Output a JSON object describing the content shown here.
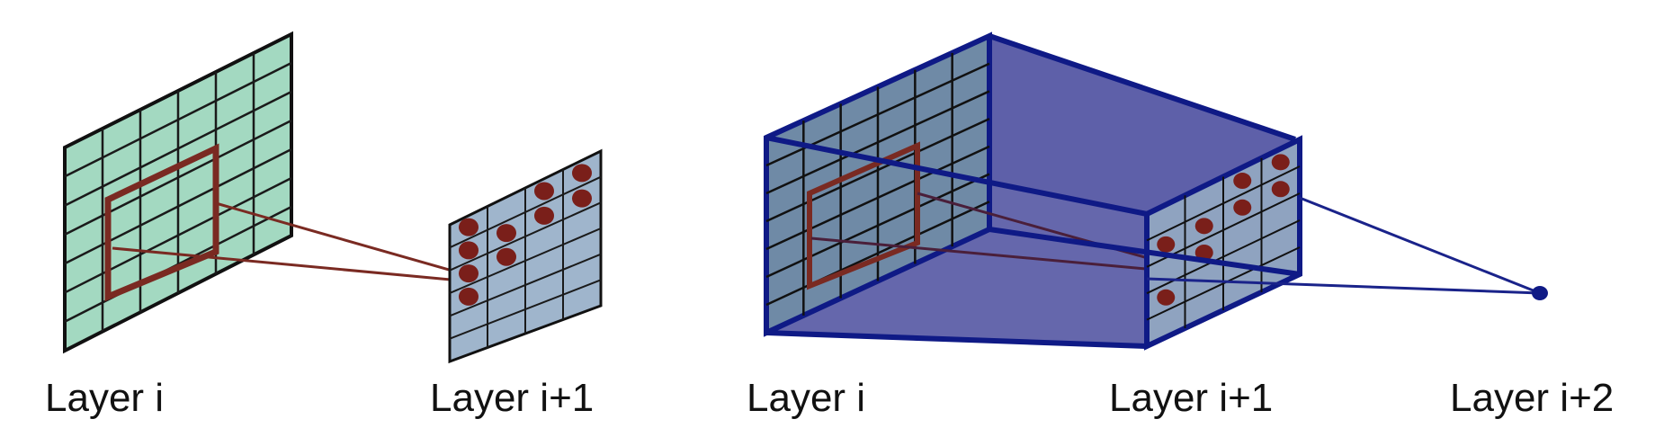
{
  "left_panel": {
    "labels": [
      "Layer i",
      "Layer i+1"
    ],
    "source_grid": {
      "rows": 7,
      "cols": 6
    },
    "target_grid": {
      "rows": 6,
      "cols": 4,
      "dots": [
        [
          0,
          0
        ],
        [
          0,
          2
        ],
        [
          0,
          3
        ],
        [
          1,
          0
        ],
        [
          1,
          1
        ],
        [
          1,
          2
        ],
        [
          1,
          3
        ],
        [
          2,
          0
        ],
        [
          2,
          1
        ],
        [
          3,
          0
        ]
      ]
    }
  },
  "right_panel": {
    "labels": [
      "Layer i",
      "Layer i+1",
      "Layer i+2"
    ],
    "source_grid": {
      "rows": 7,
      "cols": 6
    },
    "target_grid": {
      "rows": 5,
      "cols": 4,
      "dots": [
        [
          0,
          2
        ],
        [
          0,
          3
        ],
        [
          1,
          0
        ],
        [
          1,
          1
        ],
        [
          1,
          2
        ],
        [
          1,
          3
        ],
        [
          2,
          1
        ],
        [
          3,
          0
        ]
      ]
    }
  },
  "colors": {
    "source_fill": "#a3d9c1",
    "target_fill": "#9fb5cc",
    "grid_line": "#1a1a1a",
    "receptive_field": "#7a2a22",
    "dot": "#7a1f1a",
    "volume_fill": "#5d5fa8",
    "volume_edge": "#0f1a86"
  }
}
